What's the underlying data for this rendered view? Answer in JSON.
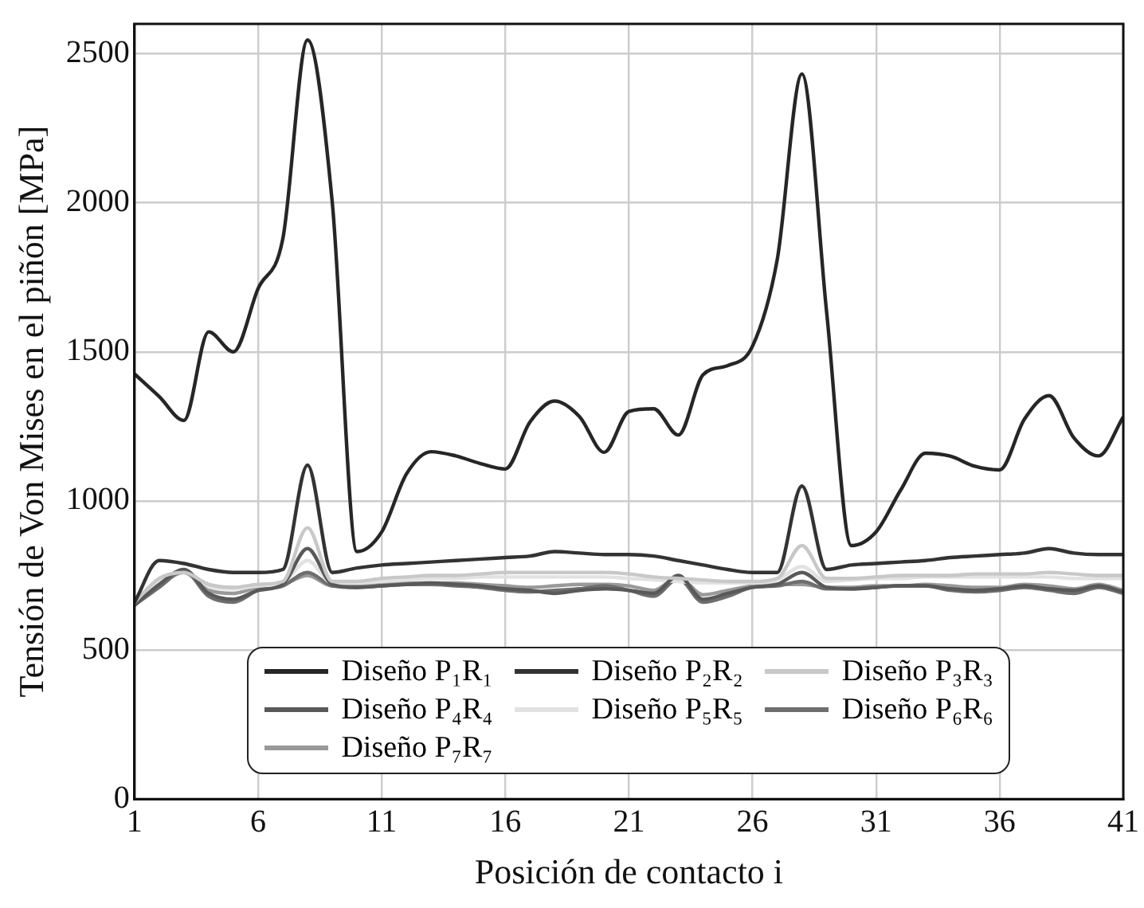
{
  "chart_data": {
    "type": "line",
    "xlabel": "Posición de contacto i",
    "ylabel": "Tensión de Von Mises en el piñón [MPa]",
    "x": [
      1,
      2,
      3,
      4,
      5,
      6,
      7,
      8,
      9,
      10,
      11,
      12,
      13,
      14,
      15,
      16,
      17,
      18,
      19,
      20,
      21,
      22,
      23,
      24,
      25,
      26,
      27,
      28,
      29,
      30,
      31,
      32,
      33,
      34,
      35,
      36,
      37,
      38,
      39,
      40,
      41
    ],
    "series": [
      {
        "name": "Diseño P₁R₁",
        "color": "#262626",
        "values": [
          1426,
          1350,
          1270,
          1567,
          1500,
          1712,
          1879,
          2546,
          2002,
          830,
          896,
          1090,
          1165,
          1151,
          1125,
          1107,
          1265,
          1335,
          1283,
          1163,
          1300,
          1309,
          1221,
          1423,
          1454,
          1519,
          1809,
          2432,
          1633,
          850,
          896,
          1037,
          1160,
          1150,
          1116,
          1104,
          1274,
          1353,
          1212,
          1151,
          1282
        ]
      },
      {
        "name": "Diseño P₂R₂",
        "color": "#333333",
        "values": [
          660,
          800,
          790,
          770,
          760,
          760,
          770,
          1120,
          760,
          775,
          785,
          790,
          795,
          800,
          805,
          810,
          815,
          830,
          825,
          820,
          820,
          815,
          800,
          785,
          770,
          760,
          760,
          1050,
          770,
          785,
          790,
          795,
          800,
          810,
          815,
          820,
          825,
          840,
          825,
          820,
          820
        ]
      },
      {
        "name": "Diseño P₃R₃",
        "color": "#c8c8c8",
        "values": [
          660,
          740,
          760,
          720,
          710,
          720,
          730,
          910,
          730,
          730,
          740,
          745,
          750,
          750,
          755,
          760,
          760,
          760,
          760,
          760,
          755,
          745,
          740,
          735,
          730,
          730,
          740,
          850,
          740,
          740,
          745,
          750,
          750,
          750,
          755,
          755,
          755,
          760,
          755,
          750,
          750
        ]
      },
      {
        "name": "Diseño P₄R₄",
        "color": "#595959",
        "values": [
          650,
          720,
          770,
          690,
          670,
          700,
          720,
          840,
          720,
          710,
          715,
          720,
          725,
          720,
          715,
          705,
          700,
          690,
          700,
          705,
          700,
          690,
          750,
          670,
          690,
          710,
          720,
          760,
          710,
          705,
          710,
          715,
          715,
          705,
          700,
          705,
          715,
          705,
          700,
          715,
          695
        ]
      },
      {
        "name": "Diseño P₅R₅",
        "color": "#e2e2e2",
        "values": [
          660,
          730,
          765,
          715,
          705,
          715,
          725,
          800,
          725,
          725,
          730,
          735,
          740,
          740,
          745,
          745,
          745,
          745,
          745,
          745,
          740,
          735,
          730,
          725,
          725,
          725,
          735,
          780,
          730,
          735,
          740,
          740,
          745,
          745,
          745,
          745,
          745,
          745,
          740,
          740,
          740
        ]
      },
      {
        "name": "Diseño P₆R₆",
        "color": "#6e6e6e",
        "values": [
          650,
          710,
          765,
          680,
          660,
          700,
          715,
          760,
          715,
          710,
          715,
          720,
          720,
          715,
          710,
          700,
          695,
          700,
          705,
          715,
          700,
          680,
          740,
          660,
          680,
          710,
          715,
          730,
          705,
          705,
          710,
          715,
          715,
          700,
          695,
          700,
          710,
          700,
          690,
          710,
          690
        ]
      },
      {
        "name": "Diseño P₇R₇",
        "color": "#999999",
        "values": [
          655,
          715,
          760,
          700,
          690,
          710,
          720,
          750,
          715,
          715,
          720,
          725,
          725,
          725,
          720,
          715,
          710,
          715,
          720,
          720,
          715,
          700,
          745,
          685,
          700,
          715,
          720,
          720,
          710,
          710,
          715,
          715,
          720,
          715,
          710,
          710,
          720,
          715,
          705,
          720,
          700
        ]
      }
    ],
    "xlim": [
      1,
      41
    ],
    "xticks": [
      1,
      6,
      11,
      16,
      21,
      26,
      31,
      36,
      41
    ],
    "ylim": [
      0,
      2600
    ],
    "yticks": [
      0,
      500,
      1000,
      1500,
      2000,
      2500
    ],
    "grid": true,
    "legend": "bottom",
    "marker": "none",
    "line_style": "solid"
  }
}
